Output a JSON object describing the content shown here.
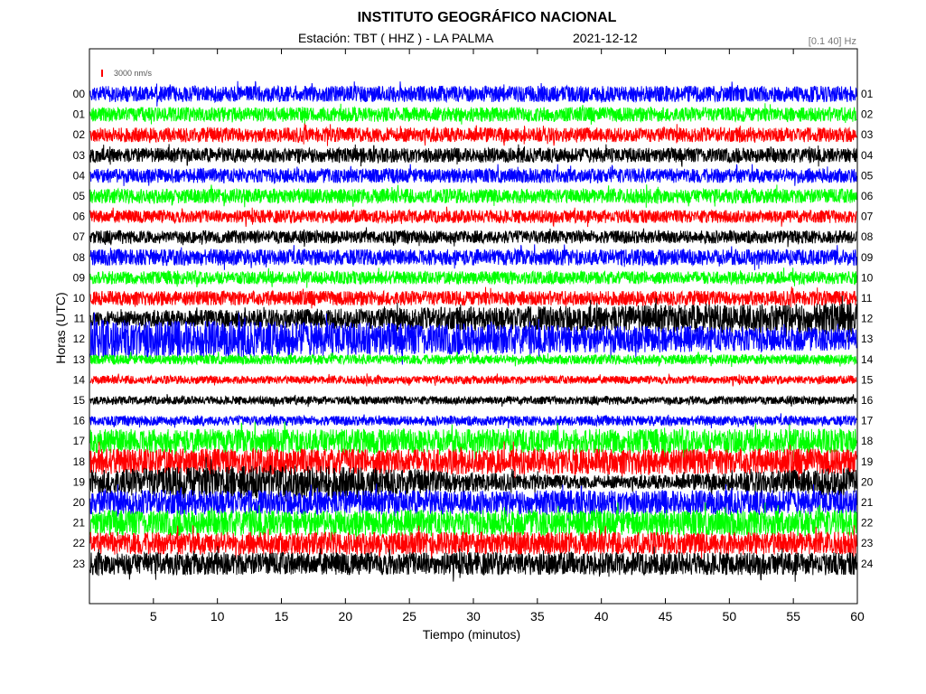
{
  "header": {
    "title": "INSTITUTO GEOGRÁFICO NACIONAL",
    "station": "Estación:  TBT ( HHZ ) - LA PALMA",
    "date": "2021-12-12",
    "filter": "[0.1 40] Hz"
  },
  "chart_data": {
    "type": "line",
    "title": "INSTITUTO GEOGRÁFICO NACIONAL",
    "xlabel": "Tiempo (minutos)",
    "ylabel": "Horas (UTC)",
    "xlim": [
      0,
      60
    ],
    "x_ticks": [
      "5",
      "10",
      "15",
      "20",
      "25",
      "30",
      "35",
      "40",
      "45",
      "50",
      "55",
      "60"
    ],
    "left_hour_labels": [
      "00",
      "01",
      "02",
      "03",
      "04",
      "05",
      "06",
      "07",
      "08",
      "09",
      "10",
      "11",
      "12",
      "13",
      "14",
      "15",
      "16",
      "17",
      "18",
      "19",
      "20",
      "21",
      "22",
      "23"
    ],
    "right_hour_labels": [
      "01",
      "02",
      "03",
      "04",
      "05",
      "06",
      "07",
      "08",
      "09",
      "10",
      "11",
      "12",
      "13",
      "14",
      "15",
      "16",
      "17",
      "18",
      "19",
      "20",
      "21",
      "22",
      "23",
      "24"
    ],
    "scale_label": "3000 nm/s",
    "scale_color": "#ff0000",
    "trace_colors": [
      "#0000ff",
      "#00ff00",
      "#ff0000",
      "#000000"
    ],
    "relative_amplitude": [
      1.0,
      0.9,
      0.9,
      0.9,
      0.9,
      0.9,
      0.8,
      0.8,
      1.0,
      0.8,
      0.9,
      1.3,
      2.0,
      0.6,
      0.5,
      0.5,
      0.6,
      1.5,
      1.6,
      1.6,
      1.5,
      1.6,
      1.4,
      1.4
    ],
    "grid": false
  }
}
